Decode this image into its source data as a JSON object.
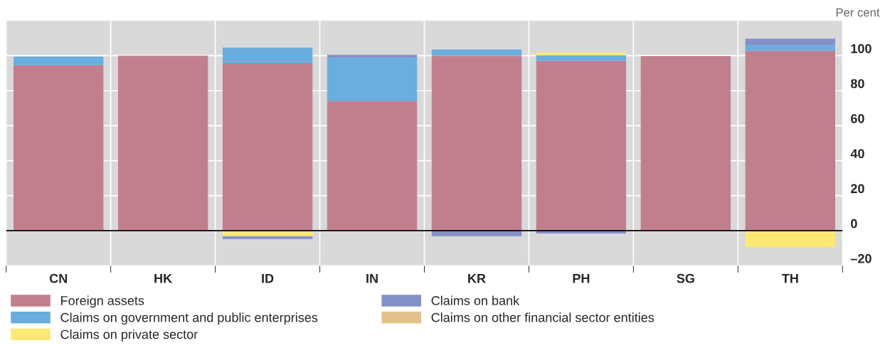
{
  "chart_data": {
    "type": "bar",
    "stacked": true,
    "ylabel": "Per cent",
    "categories": [
      "CN",
      "HK",
      "ID",
      "IN",
      "KR",
      "PH",
      "SG",
      "TH"
    ],
    "series": [
      {
        "name": "Foreign assets",
        "color": "#c17f8e",
        "values": [
          94.6,
          100,
          95.7,
          74.1,
          100,
          97,
          99.8,
          102.8
        ]
      },
      {
        "name": "Claims on government and public enterprises",
        "color": "#6aaddf",
        "values": [
          4.9,
          0,
          8.9,
          24.8,
          3.5,
          3.2,
          null,
          3.2
        ]
      },
      {
        "name": "Claims on private sector",
        "color": "#fde874",
        "values": [
          0,
          0,
          -3.2,
          0,
          0,
          1.6,
          0,
          -9.3
        ]
      },
      {
        "name": "Claims on bank",
        "color": "#8490c8",
        "values": [
          null,
          0,
          -1.6,
          1.6,
          -3.2,
          -1.7,
          0,
          3.7
        ]
      },
      {
        "name": "Claims on other financial sector entities",
        "color": "#e3c28e",
        "values": [
          0,
          0,
          0,
          null,
          0,
          0,
          0,
          0
        ]
      }
    ],
    "ylim": [
      -20,
      120
    ],
    "yticks": [
      {
        "value": -20,
        "label": "–20"
      },
      0,
      20,
      40,
      60,
      80,
      100
    ],
    "grid": true,
    "legend": "bottom"
  }
}
